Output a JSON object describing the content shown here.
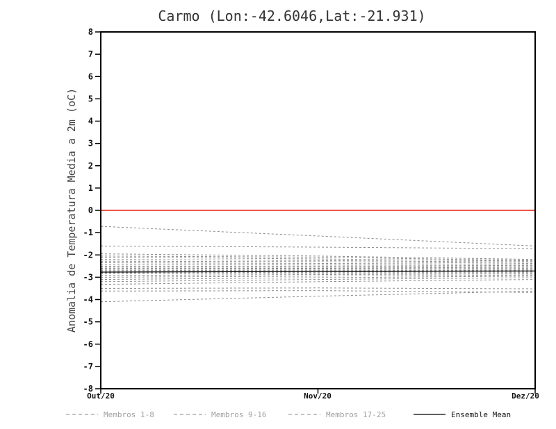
{
  "page": {
    "background": "#ffffff"
  },
  "chart_data": {
    "type": "line",
    "title": "Carmo (Lon:-42.6046,Lat:-21.931)",
    "ylabel": "Anomalia de Temperatura Media a 2m (oC)",
    "x_categories": [
      "Out/20",
      "Nov/20",
      "Dez/20"
    ],
    "ylim": [
      -8,
      8
    ],
    "ytick_step": 1,
    "grid": false,
    "zero_line": {
      "y": 0,
      "color": "#ee3a2c"
    },
    "member_color": "#8a8a8a",
    "mean_color": "#000000",
    "series": [
      {
        "name": "Membro 1",
        "group": "members",
        "values": [
          -0.72,
          -1.15,
          -1.6
        ]
      },
      {
        "name": "Membro 2",
        "group": "members",
        "values": [
          -1.6,
          -1.65,
          -1.72
        ]
      },
      {
        "name": "Membro 3",
        "group": "members",
        "values": [
          -1.95,
          -2.05,
          -2.2
        ]
      },
      {
        "name": "Membro 4",
        "group": "members",
        "values": [
          -2.05,
          -2.1,
          -2.25
        ]
      },
      {
        "name": "Membro 5",
        "group": "members",
        "values": [
          -2.1,
          -2.18,
          -2.28
        ]
      },
      {
        "name": "Membro 6",
        "group": "members",
        "values": [
          -2.2,
          -2.25,
          -2.32
        ]
      },
      {
        "name": "Membro 7",
        "group": "members",
        "values": [
          -2.28,
          -2.3,
          -2.38
        ]
      },
      {
        "name": "Membro 8",
        "group": "members",
        "values": [
          -2.35,
          -2.38,
          -2.42
        ]
      },
      {
        "name": "Membro 9",
        "group": "members",
        "values": [
          -2.42,
          -2.45,
          -2.48
        ]
      },
      {
        "name": "Membro 10",
        "group": "members",
        "values": [
          -2.5,
          -2.5,
          -2.52
        ]
      },
      {
        "name": "Membro 11",
        "group": "members",
        "values": [
          -2.55,
          -2.55,
          -2.58
        ]
      },
      {
        "name": "Membro 12",
        "group": "members",
        "values": [
          -2.6,
          -2.6,
          -2.62
        ]
      },
      {
        "name": "Membro 13",
        "group": "members",
        "values": [
          -2.65,
          -2.63,
          -2.65
        ]
      },
      {
        "name": "Membro 14",
        "group": "members",
        "values": [
          -2.7,
          -2.68,
          -2.7
        ]
      },
      {
        "name": "Membro 15",
        "group": "members",
        "values": [
          -2.75,
          -2.72,
          -2.72
        ]
      },
      {
        "name": "Membro 16",
        "group": "members",
        "values": [
          -2.8,
          -2.78,
          -2.76
        ]
      },
      {
        "name": "Membro 17",
        "group": "members",
        "values": [
          -2.85,
          -2.82,
          -2.8
        ]
      },
      {
        "name": "Membro 18",
        "group": "members",
        "values": [
          -2.92,
          -2.88,
          -2.85
        ]
      },
      {
        "name": "Membro 19",
        "group": "members",
        "values": [
          -3.0,
          -2.95,
          -2.9
        ]
      },
      {
        "name": "Membro 20",
        "group": "members",
        "values": [
          -3.1,
          -3.02,
          -2.95
        ]
      },
      {
        "name": "Membro 21",
        "group": "members",
        "values": [
          -3.2,
          -3.1,
          -3.02
        ]
      },
      {
        "name": "Membro 22",
        "group": "members",
        "values": [
          -3.32,
          -3.2,
          -3.1
        ]
      },
      {
        "name": "Membro 23",
        "group": "members",
        "values": [
          -3.5,
          -3.48,
          -3.52
        ]
      },
      {
        "name": "Membro 24",
        "group": "members",
        "values": [
          -3.62,
          -3.6,
          -3.68
        ]
      },
      {
        "name": "Membro 25",
        "group": "members",
        "values": [
          -4.1,
          -3.85,
          -3.62
        ]
      },
      {
        "name": "Ensemble Mean",
        "group": "mean",
        "values": [
          -2.77,
          -2.74,
          -2.72
        ]
      }
    ],
    "legend": [
      {
        "label": "Membros 1-8",
        "style": "dashed",
        "color": "#a0a0a0"
      },
      {
        "label": "Membros 9-16",
        "style": "dashed",
        "color": "#a0a0a0"
      },
      {
        "label": "Membros 17-25",
        "style": "dashed",
        "color": "#a0a0a0"
      },
      {
        "label": "Ensemble Mean",
        "style": "solid",
        "color": "#000000"
      }
    ]
  }
}
